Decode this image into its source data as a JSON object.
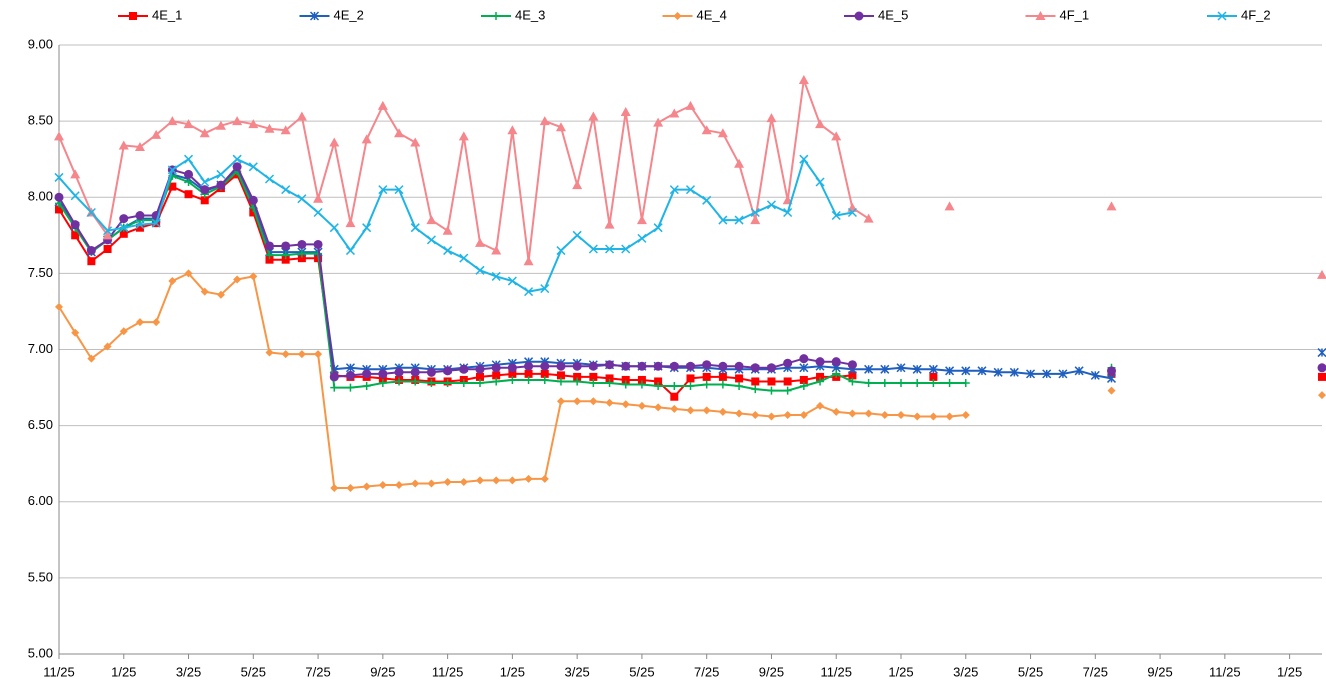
{
  "chart_data": {
    "type": "line",
    "categories": [
      "11/25",
      null,
      null,
      null,
      "1/25",
      null,
      null,
      null,
      "3/25",
      null,
      null,
      null,
      "5/25",
      null,
      null,
      null,
      "7/25",
      null,
      null,
      null,
      "9/25",
      null,
      null,
      null,
      "11/25",
      null,
      null,
      null,
      "1/25",
      null,
      null,
      null,
      "3/25",
      null,
      null,
      null,
      "5/25",
      null,
      null,
      null,
      "7/25",
      null,
      null,
      null,
      "9/25",
      null,
      null,
      null,
      "11/25",
      null,
      null,
      null,
      "1/25",
      null,
      null,
      null,
      "3/25",
      null,
      null,
      null,
      "5/25",
      null,
      null,
      null,
      "7/25",
      null,
      null,
      null,
      "9/25",
      null,
      null,
      null,
      "11/25",
      null,
      null,
      null,
      "1/25",
      null,
      null
    ],
    "ylim": [
      5,
      9
    ],
    "yticks": [
      {
        "value": 5,
        "label": "5.00"
      },
      {
        "value": 5.5,
        "label": "5.50"
      },
      {
        "value": 6,
        "label": "6.00"
      },
      {
        "value": 6.5,
        "label": "6.50"
      },
      {
        "value": 7,
        "label": "7.00"
      },
      {
        "value": 7.5,
        "label": "7.50"
      },
      {
        "value": 8,
        "label": "8.00"
      },
      {
        "value": 8.5,
        "label": "8.50"
      },
      {
        "value": 9,
        "label": "9.00"
      }
    ],
    "grid": true,
    "legend": "top",
    "series": [
      {
        "name": "4E_1",
        "color": "#ff0000",
        "marker": "square",
        "values": [
          7.92,
          7.75,
          7.58,
          7.66,
          7.76,
          7.8,
          7.83,
          8.07,
          8.02,
          7.98,
          8.06,
          8.15,
          7.9,
          7.59,
          7.59,
          7.6,
          7.6,
          6.83,
          6.82,
          6.82,
          6.81,
          6.8,
          6.8,
          6.79,
          6.79,
          6.8,
          6.82,
          6.83,
          6.84,
          6.84,
          6.84,
          6.83,
          6.82,
          6.82,
          6.81,
          6.8,
          6.8,
          6.79,
          6.69,
          6.81,
          6.82,
          6.82,
          6.81,
          6.79,
          6.79,
          6.79,
          6.8,
          6.82,
          6.82,
          6.83,
          null,
          null,
          null,
          null,
          6.82,
          null,
          null,
          null,
          null,
          null,
          null,
          null,
          null,
          null,
          null,
          6.84,
          null,
          null,
          null,
          null,
          null,
          null,
          null,
          null,
          null,
          null,
          null,
          null,
          6.82
        ]
      },
      {
        "name": "4E_2",
        "color": "#1f5fbf",
        "marker": "star",
        "values": [
          7.97,
          7.81,
          7.64,
          7.72,
          7.8,
          7.86,
          7.86,
          8.15,
          8.12,
          8.04,
          8.08,
          8.18,
          7.95,
          7.64,
          7.64,
          7.64,
          7.64,
          6.87,
          6.88,
          6.87,
          6.87,
          6.88,
          6.88,
          6.87,
          6.87,
          6.88,
          6.89,
          6.9,
          6.91,
          6.92,
          6.92,
          6.91,
          6.91,
          6.9,
          6.9,
          6.89,
          6.89,
          6.89,
          6.88,
          6.88,
          6.88,
          6.87,
          6.87,
          6.87,
          6.87,
          6.88,
          6.88,
          6.89,
          6.88,
          6.87,
          6.87,
          6.87,
          6.88,
          6.87,
          6.87,
          6.86,
          6.86,
          6.86,
          6.85,
          6.85,
          6.84,
          6.84,
          6.84,
          6.86,
          6.83,
          6.81,
          null,
          null,
          null,
          null,
          null,
          null,
          null,
          null,
          null,
          null,
          null,
          null,
          6.98
        ]
      },
      {
        "name": "4E_3",
        "color": "#00b050",
        "marker": "plus",
        "values": [
          7.96,
          7.8,
          7.64,
          7.72,
          7.8,
          7.85,
          7.85,
          8.14,
          8.1,
          8.02,
          8.07,
          8.17,
          7.93,
          7.62,
          7.62,
          7.63,
          7.63,
          6.75,
          6.75,
          6.76,
          6.78,
          6.79,
          6.79,
          6.78,
          6.78,
          6.78,
          6.78,
          6.79,
          6.8,
          6.8,
          6.8,
          6.79,
          6.79,
          6.78,
          6.78,
          6.77,
          6.77,
          6.76,
          6.76,
          6.76,
          6.77,
          6.77,
          6.76,
          6.74,
          6.73,
          6.73,
          6.76,
          6.79,
          6.84,
          6.79,
          6.78,
          6.78,
          6.78,
          6.78,
          6.78,
          6.78,
          6.78,
          null,
          null,
          null,
          null,
          null,
          null,
          null,
          null,
          6.88,
          null,
          null,
          null,
          null,
          null,
          null,
          null,
          null,
          null,
          null,
          null,
          null,
          null
        ]
      },
      {
        "name": "4E_4",
        "color": "#f79646",
        "marker": "diamond",
        "values": [
          7.28,
          7.11,
          6.94,
          7.02,
          7.12,
          7.18,
          7.18,
          7.45,
          7.5,
          7.38,
          7.36,
          7.46,
          7.48,
          6.98,
          6.97,
          6.97,
          6.97,
          6.09,
          6.09,
          6.1,
          6.11,
          6.11,
          6.12,
          6.12,
          6.13,
          6.13,
          6.14,
          6.14,
          6.14,
          6.15,
          6.15,
          6.66,
          6.66,
          6.66,
          6.65,
          6.64,
          6.63,
          6.62,
          6.61,
          6.6,
          6.6,
          6.59,
          6.58,
          6.57,
          6.56,
          6.57,
          6.57,
          6.63,
          6.59,
          6.58,
          6.58,
          6.57,
          6.57,
          6.56,
          6.56,
          6.56,
          6.57,
          null,
          null,
          null,
          null,
          null,
          null,
          null,
          null,
          6.73,
          null,
          null,
          null,
          null,
          null,
          null,
          null,
          null,
          null,
          null,
          null,
          null,
          6.7
        ]
      },
      {
        "name": "4E_5",
        "color": "#7030a0",
        "marker": "circle",
        "values": [
          8.0,
          7.82,
          7.65,
          7.72,
          7.86,
          7.88,
          7.88,
          8.18,
          8.15,
          8.05,
          8.08,
          8.2,
          7.98,
          7.68,
          7.68,
          7.69,
          7.69,
          6.82,
          6.83,
          6.84,
          6.84,
          6.85,
          6.85,
          6.85,
          6.86,
          6.87,
          6.87,
          6.88,
          6.88,
          6.89,
          6.89,
          6.89,
          6.89,
          6.89,
          6.9,
          6.89,
          6.89,
          6.89,
          6.89,
          6.89,
          6.9,
          6.89,
          6.89,
          6.88,
          6.88,
          6.91,
          6.94,
          6.92,
          6.92,
          6.9,
          null,
          null,
          null,
          null,
          null,
          null,
          null,
          null,
          null,
          null,
          null,
          null,
          null,
          null,
          null,
          6.86,
          null,
          null,
          null,
          null,
          null,
          null,
          null,
          null,
          null,
          null,
          null,
          null,
          6.88
        ]
      },
      {
        "name": "4F_1",
        "color": "#f4868c",
        "marker": "triangle",
        "values": [
          8.4,
          8.15,
          7.9,
          7.75,
          8.34,
          8.33,
          8.41,
          8.5,
          8.48,
          8.42,
          8.47,
          8.5,
          8.48,
          8.45,
          8.44,
          8.53,
          7.99,
          8.36,
          7.83,
          8.38,
          8.6,
          8.42,
          8.36,
          7.85,
          7.78,
          8.4,
          7.7,
          7.65,
          8.44,
          7.58,
          8.5,
          8.46,
          8.08,
          8.53,
          7.82,
          8.56,
          7.85,
          8.49,
          8.55,
          8.6,
          8.44,
          8.42,
          8.22,
          7.85,
          8.52,
          7.98,
          8.77,
          8.48,
          8.4,
          7.93,
          7.86,
          null,
          null,
          null,
          null,
          7.94,
          null,
          null,
          null,
          null,
          null,
          null,
          null,
          null,
          null,
          7.94,
          null,
          null,
          null,
          null,
          null,
          null,
          null,
          null,
          null,
          null,
          null,
          null,
          7.49
        ]
      },
      {
        "name": "4F_2",
        "color": "#1eb4e6",
        "marker": "cross",
        "values": [
          8.13,
          8.01,
          7.9,
          7.78,
          7.8,
          7.82,
          7.83,
          8.18,
          8.25,
          8.1,
          8.15,
          8.25,
          8.2,
          8.12,
          8.05,
          7.99,
          7.9,
          7.8,
          7.65,
          7.8,
          8.05,
          8.05,
          7.8,
          7.72,
          7.65,
          7.6,
          7.52,
          7.48,
          7.45,
          7.38,
          7.4,
          7.65,
          7.75,
          7.66,
          7.66,
          7.66,
          7.73,
          7.8,
          8.05,
          8.05,
          7.98,
          7.85,
          7.85,
          7.9,
          7.95,
          7.9,
          8.25,
          8.1,
          7.88,
          7.9,
          null,
          null,
          null,
          null,
          null,
          null,
          null,
          null,
          null,
          null,
          null,
          null,
          null,
          null,
          null,
          null,
          null,
          null,
          null,
          null,
          null,
          null,
          null,
          null,
          null,
          null,
          null,
          null,
          null
        ]
      }
    ]
  }
}
